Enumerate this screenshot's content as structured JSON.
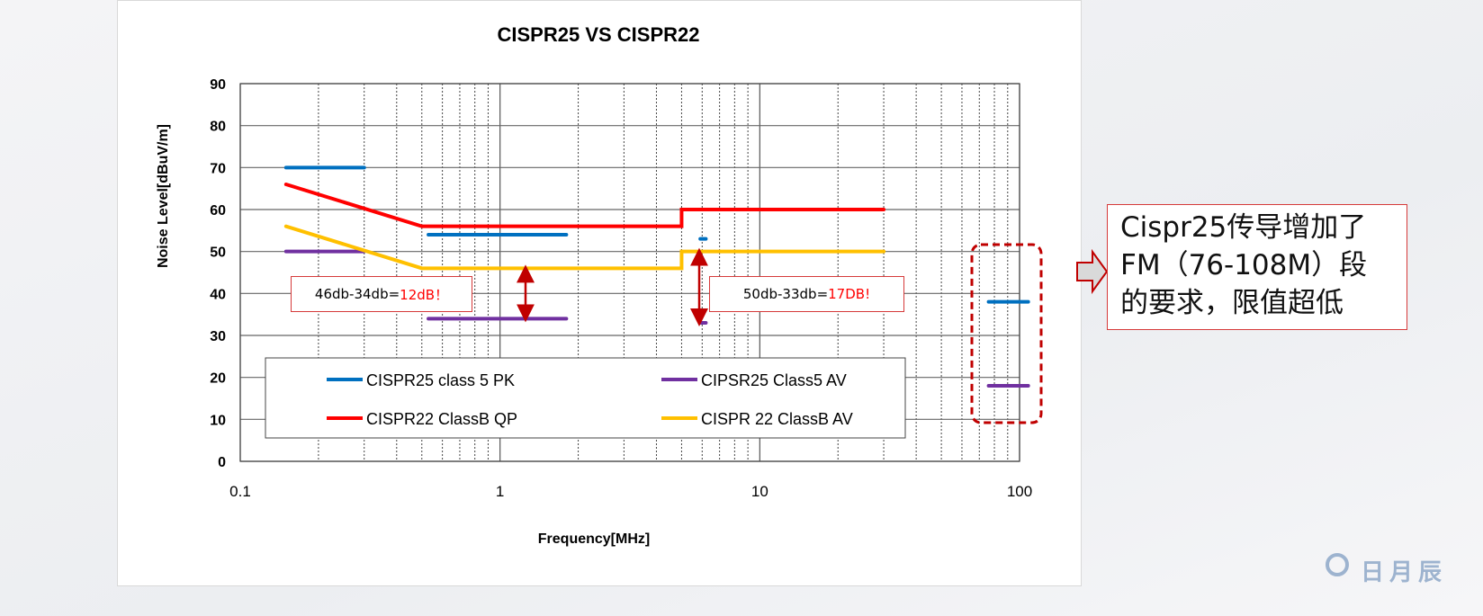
{
  "chart_data": {
    "type": "line",
    "title": "CISPR25 VS CISPR22",
    "xlabel": "Frequency[MHz]",
    "ylabel": "Noise Level[dBuV/m]",
    "xscale": "log",
    "xlim": [
      0.1,
      100
    ],
    "ylim": [
      0,
      90
    ],
    "xticks": [
      "0.1",
      "1",
      "10",
      "100"
    ],
    "yticks": [
      "0",
      "10",
      "20",
      "30",
      "40",
      "50",
      "60",
      "70",
      "80",
      "90"
    ],
    "grid": true,
    "legend_position": "bottom-inside",
    "series": [
      {
        "name": "CISPR25 class 5 PK",
        "color": "#0070c0",
        "segments": [
          [
            [
              0.15,
              70
            ],
            [
              0.3,
              70
            ]
          ],
          [
            [
              0.53,
              54
            ],
            [
              1.8,
              54
            ]
          ],
          [
            [
              5.9,
              53
            ],
            [
              6.2,
              53
            ]
          ],
          [
            [
              76,
              38
            ],
            [
              108,
              38
            ]
          ]
        ]
      },
      {
        "name": "CIPSR25 Class5 AV",
        "color": "#7030a0",
        "segments": [
          [
            [
              0.15,
              50
            ],
            [
              0.3,
              50
            ]
          ],
          [
            [
              0.53,
              34
            ],
            [
              1.8,
              34
            ]
          ],
          [
            [
              5.9,
              33
            ],
            [
              6.2,
              33
            ]
          ],
          [
            [
              76,
              18
            ],
            [
              108,
              18
            ]
          ]
        ]
      },
      {
        "name": "CISPR22 ClassB QP",
        "color": "#ff0000",
        "segments": [
          [
            [
              0.15,
              66
            ],
            [
              0.5,
              56
            ],
            [
              5,
              56
            ],
            [
              5,
              60
            ],
            [
              30,
              60
            ]
          ]
        ]
      },
      {
        "name": "CISPR 22 ClassB AV",
        "color": "#ffc000",
        "segments": [
          [
            [
              0.15,
              56
            ],
            [
              0.5,
              46
            ],
            [
              5,
              46
            ],
            [
              5,
              50
            ],
            [
              30,
              50
            ]
          ]
        ]
      }
    ],
    "annotations": [
      {
        "prefix": "46db-34db=",
        "result": "12dB！",
        "x": 1.0,
        "from": 46,
        "to": 34
      },
      {
        "prefix": "50db-33db=",
        "result": "17DB!",
        "x": 5.6,
        "from": 50,
        "to": 33
      }
    ]
  },
  "note": {
    "lines": [
      "Cispr25传导增加了",
      "FM（76-108M）段",
      "的要求，限值超低"
    ]
  },
  "watermark": "日月辰"
}
